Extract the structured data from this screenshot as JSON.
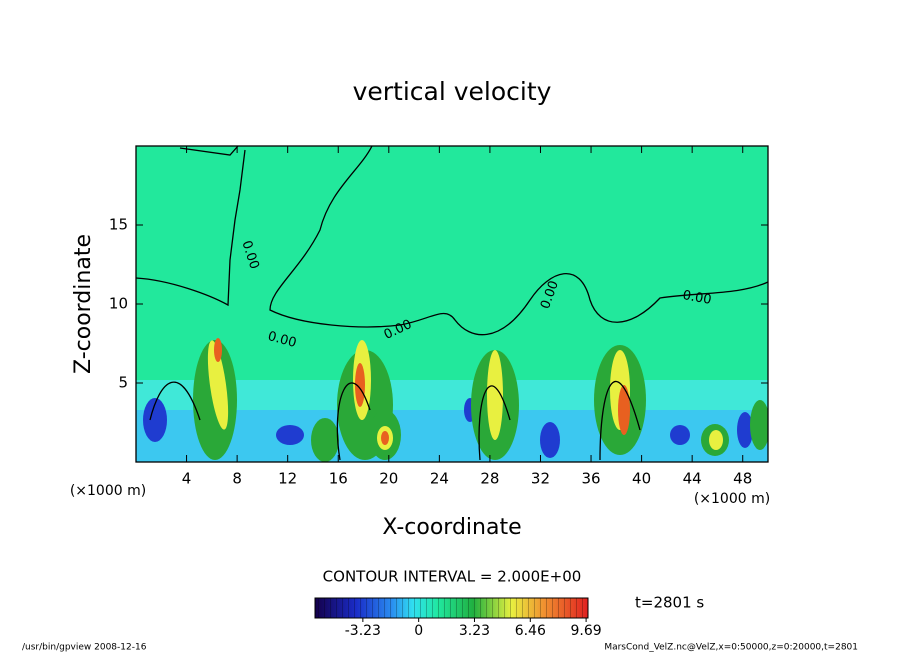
{
  "chart_data": {
    "type": "contour",
    "title": "vertical velocity",
    "xlabel": "X-coordinate",
    "ylabel": "Z-coordinate",
    "x_unit": "(×1000 m)",
    "xlim": [
      0,
      50
    ],
    "xticks": [
      4,
      8,
      12,
      16,
      20,
      24,
      28,
      32,
      36,
      40,
      44,
      48
    ],
    "ylim": [
      0,
      20
    ],
    "yticks": [
      5,
      10,
      15
    ],
    "contour_labels": [
      "0.00",
      "0.00",
      "0.00",
      "0.00",
      "0.00"
    ],
    "contour_interval_text": "CONTOUR INTERVAL = 2.000E+00",
    "time_text": "t=2801 s",
    "colorbar": {
      "lim": [
        -6,
        9.8
      ],
      "ticks": [
        -3.23,
        0,
        3.23,
        6.46,
        9.69
      ]
    },
    "footer_left": "/usr/bin/gpview   2008-12-16",
    "footer_right": "MarsCond_VelZ.nc@VelZ,x=0:50000,z=0:20000,t=2801"
  }
}
